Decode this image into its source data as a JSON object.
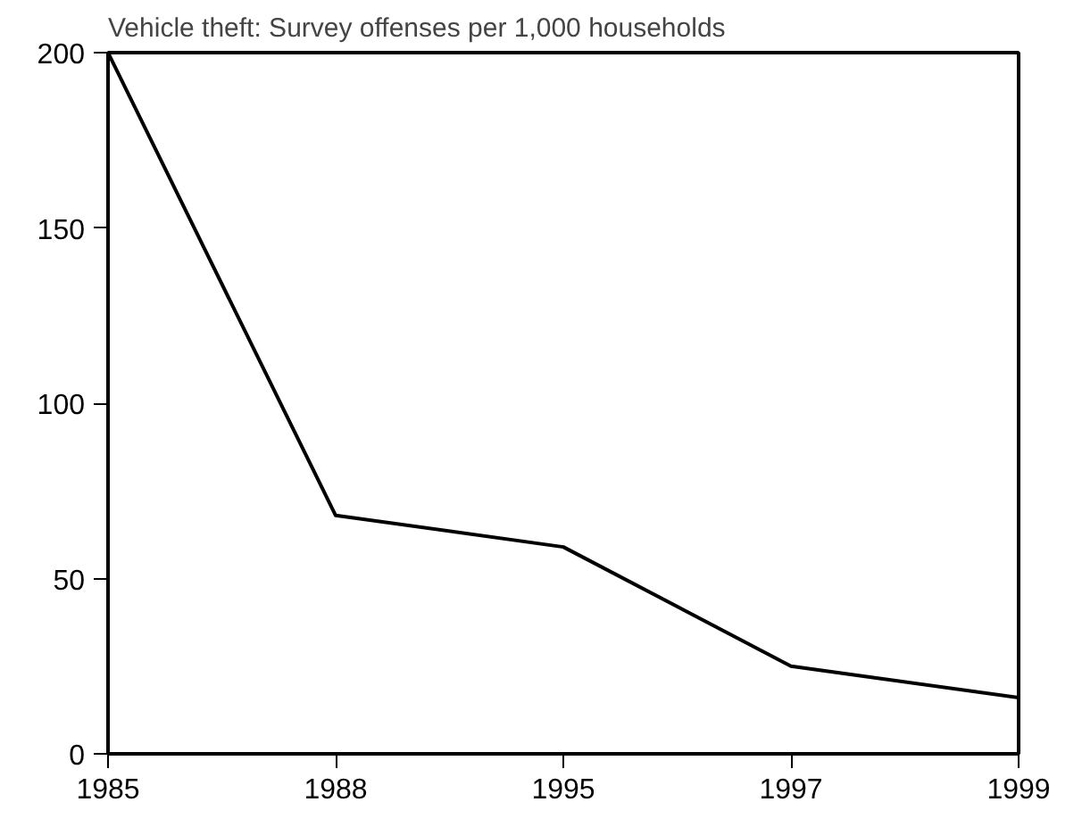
{
  "chart_data": {
    "type": "line",
    "title": "Vehicle theft: Survey offenses per 1,000 households",
    "categories": [
      "1985",
      "1988",
      "1995",
      "1997",
      "1999"
    ],
    "series": [
      {
        "color": "#000000",
        "values": [
          200,
          68,
          59,
          25,
          16
        ]
      }
    ],
    "ylim": [
      0,
      200
    ],
    "yticks": [
      0,
      50,
      100,
      150,
      200
    ],
    "grid": false,
    "marker": "none",
    "line_style": "solid"
  }
}
